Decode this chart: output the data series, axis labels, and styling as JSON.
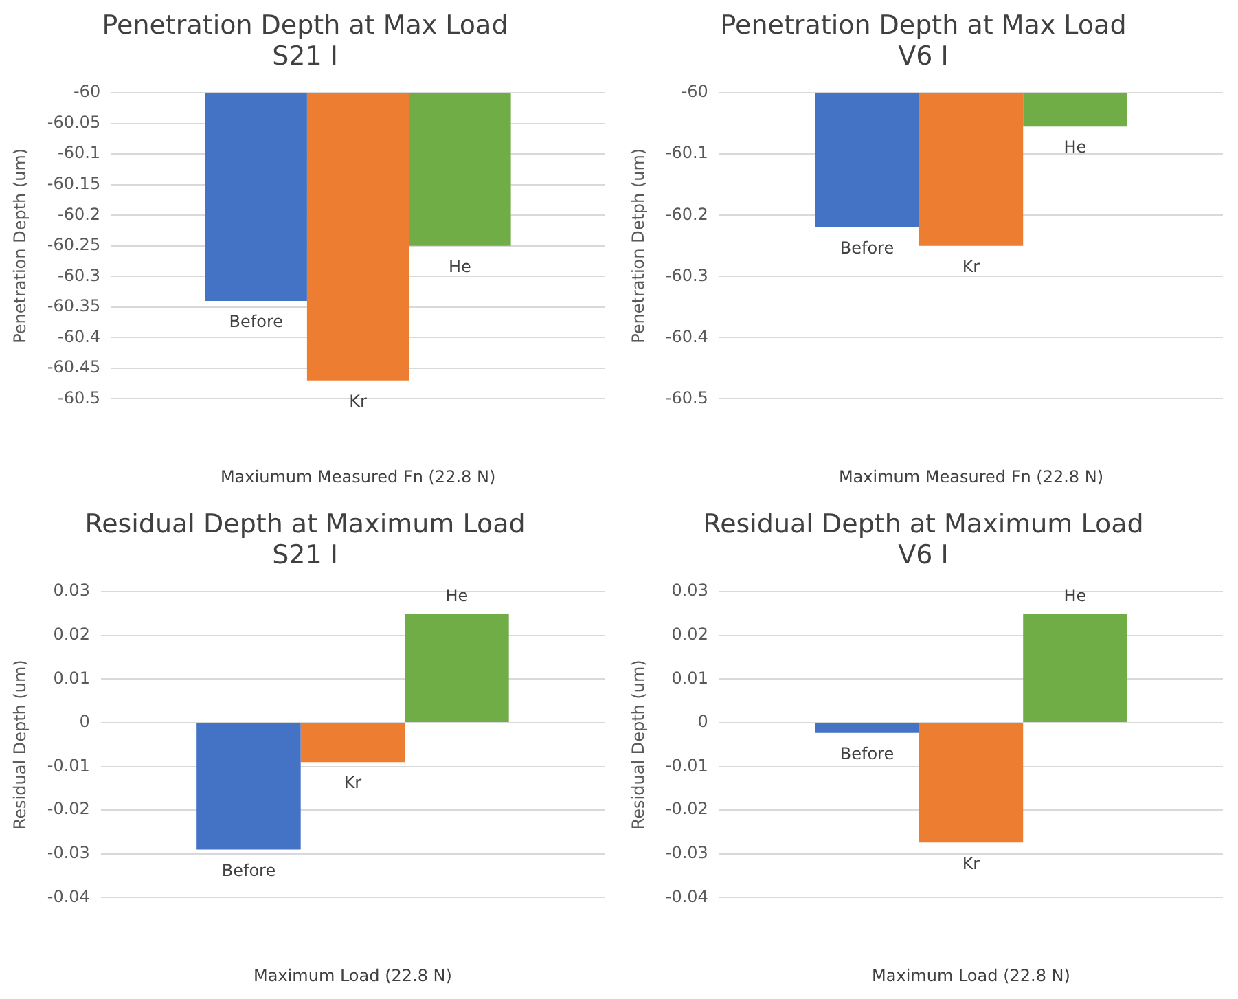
{
  "chart_data": [
    {
      "type": "bar",
      "title": "Penetration Depth at Max Load",
      "subtitle": "S21 I",
      "xlabel": "Maxiumum Measured Fn (22.8 N)",
      "ylabel": "Penetration Depth (um)",
      "categories": [
        null
      ],
      "series": [
        {
          "name": "Before",
          "color": "#4472c4",
          "values": [
            -60.34
          ]
        },
        {
          "name": "Kr",
          "color": "#ed7d31",
          "values": [
            -60.47
          ]
        },
        {
          "name": "He",
          "color": "#70ad47",
          "values": [
            -60.25
          ]
        }
      ],
      "ylim": [
        -60.5,
        -60
      ],
      "yticks": [
        -60,
        -60.05,
        -60.1,
        -60.15,
        -60.2,
        -60.25,
        -60.3,
        -60.35,
        -60.4,
        -60.45,
        -60.5
      ],
      "grid": "y",
      "legend": false
    },
    {
      "type": "bar",
      "title": "Penetration Depth at Max Load",
      "subtitle": "V6 I",
      "xlabel": "Maximum Measured Fn (22.8 N)",
      "ylabel": "Penetration Detph (um)",
      "categories": [
        null
      ],
      "series": [
        {
          "name": "Before",
          "color": "#4472c4",
          "values": [
            -60.22
          ]
        },
        {
          "name": "Kr",
          "color": "#ed7d31",
          "values": [
            -60.25
          ]
        },
        {
          "name": "He",
          "color": "#70ad47",
          "values": [
            -60.055
          ]
        }
      ],
      "ylim": [
        -60.5,
        -60
      ],
      "yticks": [
        -60,
        -60.1,
        -60.2,
        -60.3,
        -60.4,
        -60.5
      ],
      "grid": "y",
      "legend": false
    },
    {
      "type": "bar",
      "title": "Residual Depth at Maximum Load",
      "subtitle": "S21 I",
      "xlabel": "Maximum Load (22.8 N)",
      "ylabel": "Residual Depth (um)",
      "categories": [
        null
      ],
      "series": [
        {
          "name": "Before",
          "color": "#4472c4",
          "values": [
            -0.029
          ]
        },
        {
          "name": "Kr",
          "color": "#ed7d31",
          "values": [
            -0.009
          ]
        },
        {
          "name": "He",
          "color": "#70ad47",
          "values": [
            0.025
          ]
        }
      ],
      "ylim": [
        -0.04,
        0.03
      ],
      "yticks": [
        -0.04,
        -0.03,
        -0.02,
        -0.01,
        0,
        0.01,
        0.02,
        0.03
      ],
      "grid": "y",
      "legend": false
    },
    {
      "type": "bar",
      "title": "Residual Depth at Maximum Load",
      "subtitle": "V6 I",
      "xlabel": "Maximum Load (22.8 N)",
      "ylabel": "Residual Depth (um)",
      "categories": [
        null
      ],
      "series": [
        {
          "name": "Before",
          "color": "#4472c4",
          "values": [
            -0.0023
          ]
        },
        {
          "name": "Kr",
          "color": "#ed7d31",
          "values": [
            -0.0274
          ]
        },
        {
          "name": "He",
          "color": "#70ad47",
          "values": [
            0.025
          ]
        }
      ],
      "ylim": [
        -0.04,
        0.03
      ],
      "yticks": [
        -0.04,
        -0.03,
        -0.02,
        -0.01,
        0,
        0.01,
        0.02,
        0.03
      ],
      "grid": "y",
      "legend": false
    }
  ]
}
